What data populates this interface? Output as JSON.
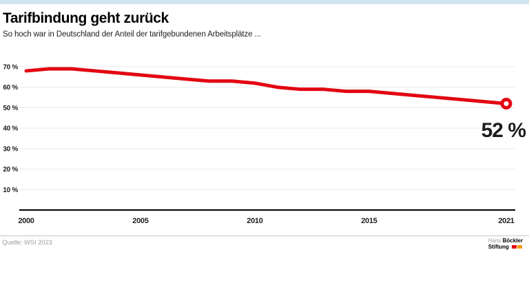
{
  "header": {
    "title": "Tarifbindung geht zurück",
    "subtitle": "So hoch war in Deutschland der Anteil der tarifgebundenen Arbeitsplätze ..."
  },
  "footer": {
    "source": "Quelle: WSI 2023",
    "logo": {
      "first_word": "Hans",
      "last_word": "Böckler",
      "second_line": "Stiftung"
    }
  },
  "colors": {
    "accent_red": "#e30613",
    "grid": "#e9e9e9",
    "axis": "#000000",
    "text_dark": "#1d1d1b",
    "muted": "#9d9d9c",
    "topbar_blue": "#cfe4ef",
    "divider": "#c6c6c6",
    "logo_orange": "#f59c00"
  },
  "chart_data": {
    "type": "line",
    "title": "Tarifbindung geht zurück",
    "series_name": "Anteil der tarifgebundenen Arbeitsplätze in Deutschland",
    "x": [
      2000,
      2001,
      2002,
      2003,
      2004,
      2005,
      2006,
      2007,
      2008,
      2009,
      2010,
      2011,
      2012,
      2013,
      2014,
      2015,
      2016,
      2017,
      2018,
      2019,
      2020,
      2021
    ],
    "values": [
      68,
      69,
      69,
      68,
      67,
      66,
      65,
      64,
      63,
      63,
      62,
      60,
      59,
      59,
      58,
      58,
      57,
      56,
      55,
      54,
      53,
      52
    ],
    "unit": "%",
    "x_ticks": [
      2000,
      2005,
      2010,
      2015,
      2021
    ],
    "y_ticks": [
      70,
      60,
      50,
      40,
      30,
      20,
      10
    ],
    "y_tick_labels": [
      "70 %",
      "60 %",
      "50 %",
      "40 %",
      "30 %",
      "20 %",
      "10 %"
    ],
    "ylim": [
      0,
      74
    ],
    "xlim": [
      2000,
      2021
    ],
    "grid": true,
    "legend_position": "none",
    "end_label": "52 %",
    "end_marker": "open-circle",
    "line_color": "#e30613"
  }
}
